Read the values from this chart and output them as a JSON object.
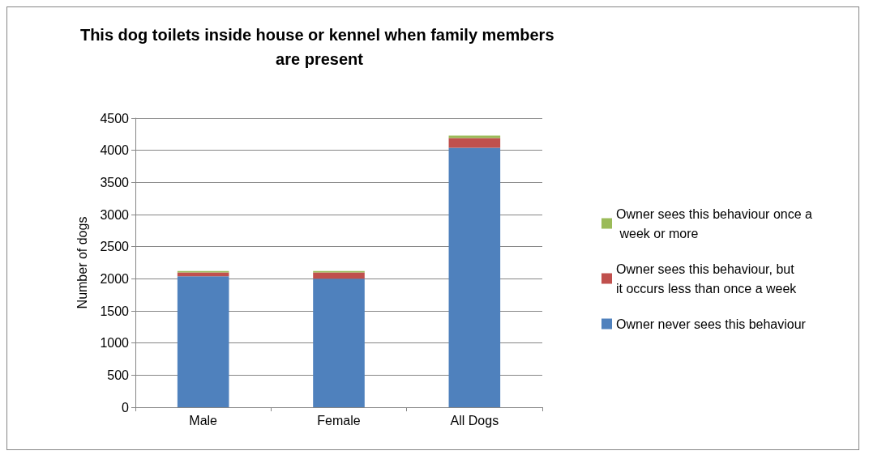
{
  "chart_data": {
    "type": "bar",
    "title": "This dog toilets inside house or kennel when family members are present",
    "ylabel": "Number of dogs",
    "categories": [
      "Male",
      "Female",
      "All Dogs"
    ],
    "stacked": true,
    "series": [
      {
        "name": "Owner never sees this behaviour",
        "color": "#4f81bd",
        "values": [
          2040,
          2000,
          4040
        ]
      },
      {
        "name": "Owner sees this behaviour, but it occurs less than once a week",
        "color": "#c0504d",
        "values": [
          60,
          100,
          150
        ]
      },
      {
        "name": "Owner sees this behaviour once a week or more",
        "color": "#9bbb59",
        "values": [
          20,
          20,
          40
        ]
      }
    ],
    "ylim": [
      0,
      4500
    ],
    "yticks": [
      0,
      500,
      1000,
      1500,
      2000,
      2500,
      3000,
      3500,
      4000,
      4500
    ],
    "grid": "y",
    "legend": "right"
  }
}
